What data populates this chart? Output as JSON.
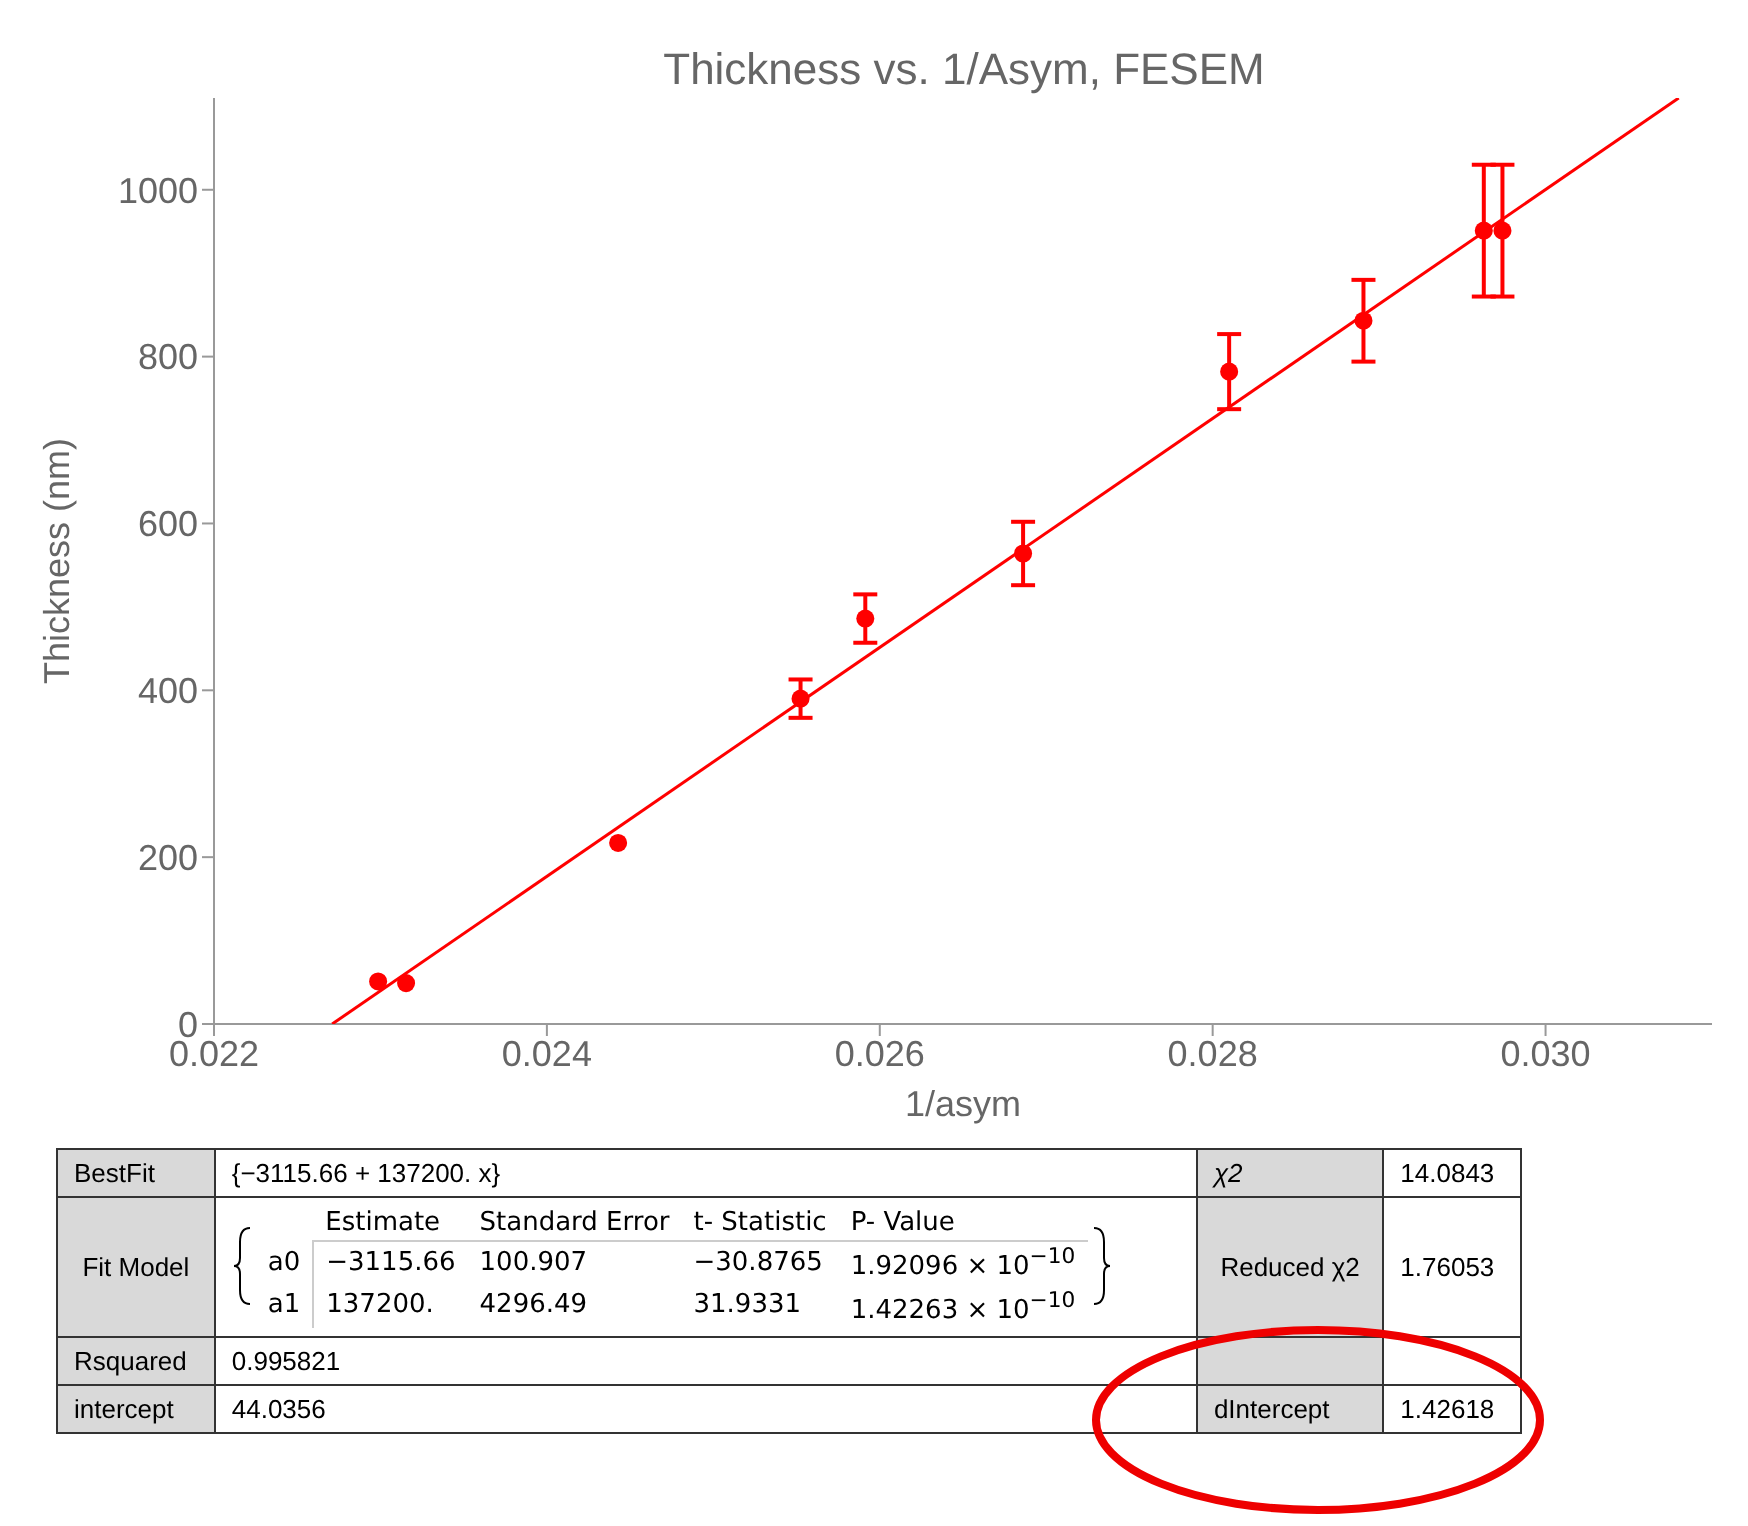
{
  "chart_data": {
    "type": "scatter",
    "title": "Thickness vs. 1/Asym, FESEM",
    "xlabel": "1/asym",
    "ylabel": "Thickness (nm)",
    "xlim": [
      0.022,
      0.031
    ],
    "xticks": [
      0.022,
      0.024,
      0.026,
      0.028,
      {
        "value": 0.03,
        "label": "0.030"
      }
    ],
    "ylim": [
      0,
      1110
    ],
    "yticks": [
      0,
      200,
      400,
      600,
      800,
      1000
    ],
    "series": [
      {
        "marker": "circle",
        "color": "#ff0000",
        "x": [
          0.022986,
          0.023154,
          0.024428,
          0.025524,
          0.025913,
          0.026861,
          0.028099,
          0.028906,
          0.029629,
          0.029741
        ],
        "values": [
          51,
          49,
          217,
          390,
          486,
          564,
          782,
          843,
          951,
          951
        ],
        "errors": [
          null,
          null,
          null,
          23,
          29,
          38,
          45,
          49,
          79,
          79
        ]
      },
      {
        "type": "line",
        "marker": "none",
        "color": "#ff0000",
        "x": [
          0.02271,
          0.0308
        ],
        "values": [
          0,
          1110
        ]
      }
    ],
    "annotations": [
      "BestFit",
      "{−3115.66 + 137200. x}",
      "χ2",
      "14.0843",
      "Fit Model",
      "Estimate",
      "Standard Error",
      "t- Statistic",
      "P- Value",
      "a0",
      "−3115.66",
      "100.907",
      "−30.8765",
      "1.92096 × 10$^{−10}$",
      "a1",
      "137200.",
      "4296.49",
      "31.9331",
      "1.42263 × 10$^{−10}$",
      "Reduced χ2",
      "1.76053",
      "Rsquared",
      "0.995821",
      "intercept",
      "44.0356",
      "dIntercept",
      "1.42618"
    ]
  }
}
